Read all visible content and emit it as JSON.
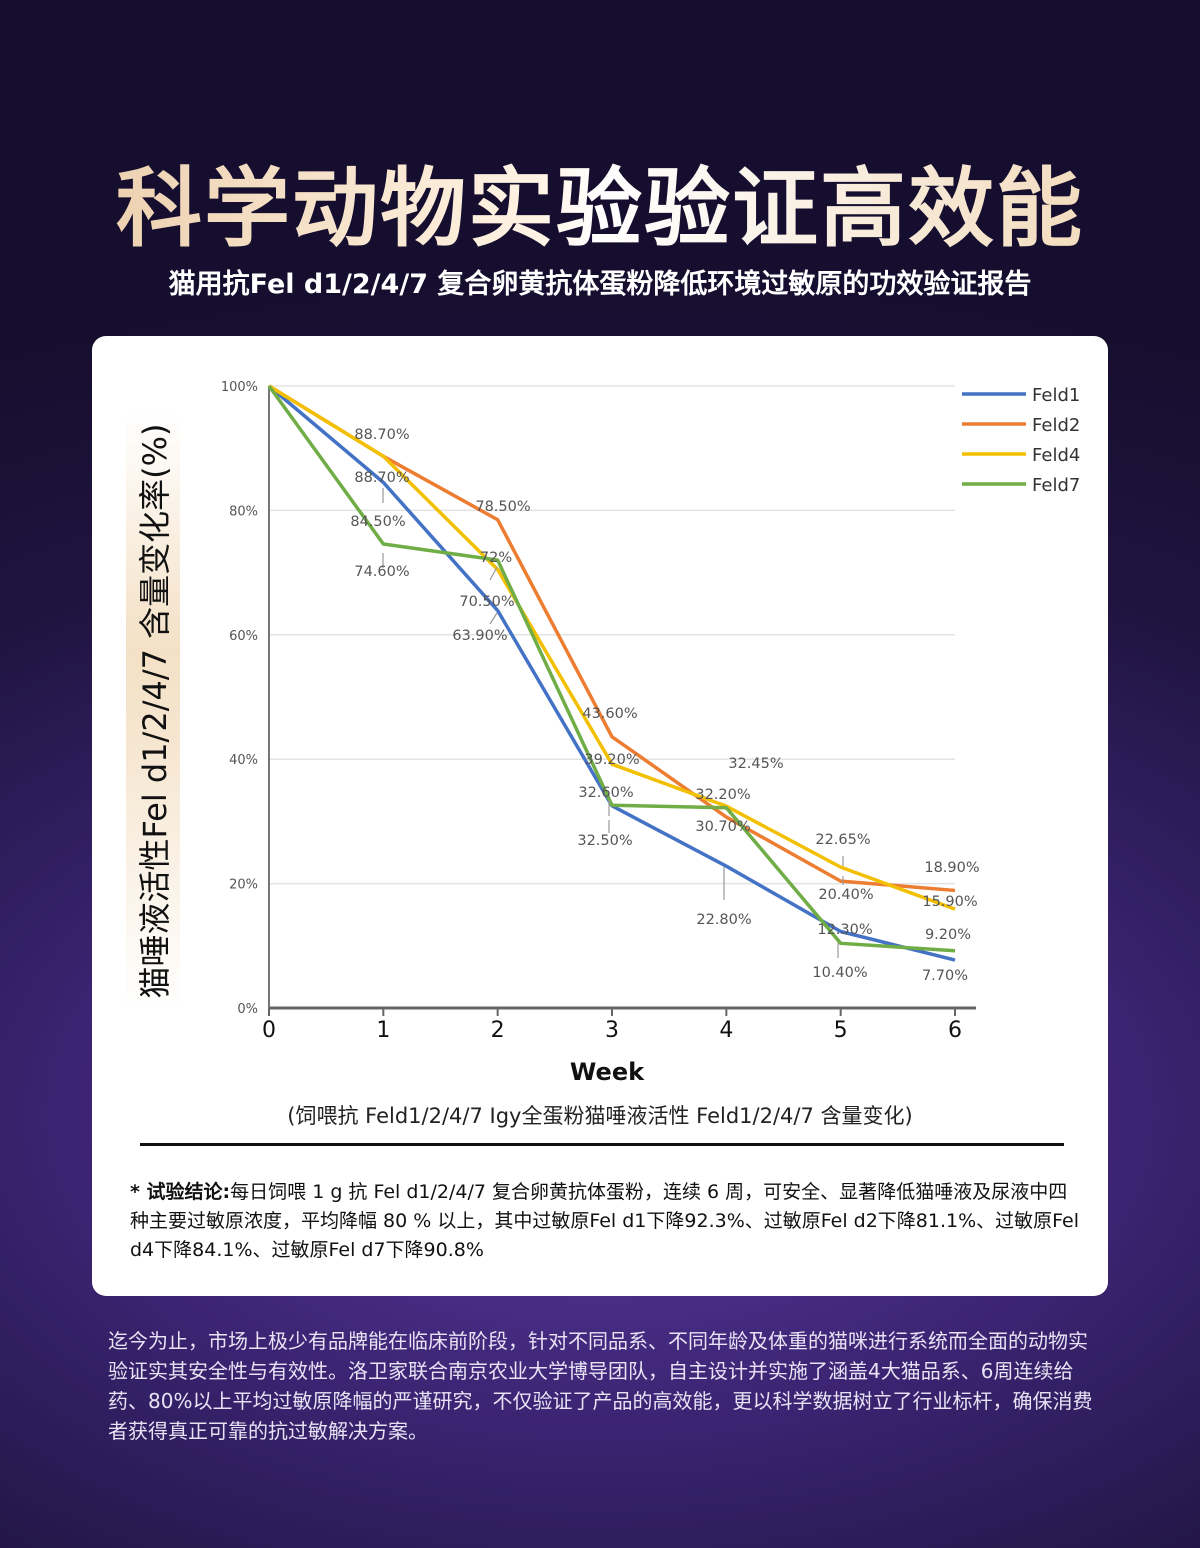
{
  "header": {
    "title": "科学动物实验验证高效能",
    "subtitle": "猫用抗Fel d1/2/4/7 复合卵黄抗体蛋粉降低环境过敏原的功效验证报告"
  },
  "chart_data": {
    "type": "line",
    "xlabel": "Week",
    "ylabel": "猫唾液活性Fel d1/2/4/7 含量变化率(%)",
    "x": [
      0,
      1,
      2,
      3,
      4,
      5,
      6
    ],
    "xlim": [
      0,
      6
    ],
    "ylim": [
      0,
      100
    ],
    "y_ticks": [
      "0%",
      "20%",
      "40%",
      "60%",
      "80%",
      "100%"
    ],
    "grid": "horizontal",
    "legend_position": "top-right",
    "series": [
      {
        "name": "Feld1",
        "color": "#4472c4",
        "values": [
          100,
          84.5,
          63.9,
          32.5,
          22.8,
          12.3,
          7.7
        ]
      },
      {
        "name": "Feld2",
        "color": "#ed7d31",
        "values": [
          100,
          88.7,
          78.5,
          43.6,
          30.7,
          20.4,
          18.9
        ]
      },
      {
        "name": "Feld4",
        "color": "#f2c000",
        "values": [
          100,
          88.7,
          70.5,
          39.2,
          32.45,
          22.65,
          15.9
        ]
      },
      {
        "name": "Feld7",
        "color": "#70ad47",
        "values": [
          100,
          74.6,
          72,
          32.6,
          32.2,
          10.4,
          9.2
        ]
      }
    ],
    "annotations": [
      {
        "text": "88.70%",
        "x": 1,
        "y": 88.7
      },
      {
        "text": "88.70%",
        "x": 1,
        "y": 88.7
      },
      {
        "text": "84.50%",
        "x": 1,
        "y": 84.5
      },
      {
        "text": "74.60%",
        "x": 1,
        "y": 74.6
      },
      {
        "text": "78.50%",
        "x": 2,
        "y": 78.5
      },
      {
        "text": "72%",
        "x": 2,
        "y": 72
      },
      {
        "text": "70.50%",
        "x": 2,
        "y": 70.5
      },
      {
        "text": "63.90%",
        "x": 2,
        "y": 63.9
      },
      {
        "text": "43.60%",
        "x": 3,
        "y": 43.6
      },
      {
        "text": "39.20%",
        "x": 3,
        "y": 39.2
      },
      {
        "text": "32.60%",
        "x": 3,
        "y": 32.6
      },
      {
        "text": "32.50%",
        "x": 3,
        "y": 32.5
      },
      {
        "text": "32.45%",
        "x": 4,
        "y": 32.45
      },
      {
        "text": "32.20%",
        "x": 4,
        "y": 32.2
      },
      {
        "text": "30.70%",
        "x": 4,
        "y": 30.7
      },
      {
        "text": "22.80%",
        "x": 4,
        "y": 22.8
      },
      {
        "text": "22.65%",
        "x": 5,
        "y": 22.65
      },
      {
        "text": "20.40%",
        "x": 5,
        "y": 20.4
      },
      {
        "text": "12.30%",
        "x": 5,
        "y": 12.3
      },
      {
        "text": "10.40%",
        "x": 5,
        "y": 10.4
      },
      {
        "text": "18.90%",
        "x": 6,
        "y": 18.9
      },
      {
        "text": "15.90%",
        "x": 6,
        "y": 15.9
      },
      {
        "text": "9.20%",
        "x": 6,
        "y": 9.2
      },
      {
        "text": "7.70%",
        "x": 6,
        "y": 7.7
      }
    ]
  },
  "caption": "(饲喂抗 Feld1/2/4/7  Igy全蛋粉猫唾液活性 Feld1/2/4/7  含量变化)",
  "conclusion": {
    "label": "* 试验结论:",
    "text": "每日饲喂 1 g 抗 Fel d1/2/4/7 复合卵黄抗体蛋粉，连续 6 周，可安全、显著降低猫唾液及尿液中四种主要过敏原浓度，平均降幅 80 % 以上，其中过敏原Fel d1下降92.3%、过敏原Fel d2下降81.1%、过敏原Fel d4下降84.1%、过敏原Fel d7下降90.8%"
  },
  "footer": "迄今为止，市场上极少有品牌能在临床前阶段，针对不同品系、不同年龄及体重的猫咪进行系统而全面的动物实验证实其安全性与有效性。洛卫家联合南京农业大学博导团队，自主设计并实施了涵盖4大猫品系、6周连续给药、80%以上平均过敏原降幅的严谨研究，不仅验证了产品的高效能，更以科学数据树立了行业标杆，确保消费者获得真正可靠的抗过敏解决方案。"
}
